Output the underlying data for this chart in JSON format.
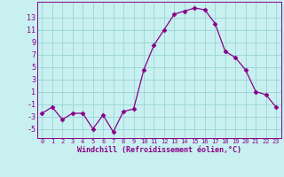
{
  "x": [
    0,
    1,
    2,
    3,
    4,
    5,
    6,
    7,
    8,
    9,
    10,
    11,
    12,
    13,
    14,
    15,
    16,
    17,
    18,
    19,
    20,
    21,
    22,
    23
  ],
  "y": [
    -2.5,
    -1.5,
    -3.5,
    -2.5,
    -2.5,
    -5.0,
    -2.8,
    -5.5,
    -2.2,
    -1.8,
    4.5,
    8.5,
    11.0,
    13.5,
    14.0,
    14.5,
    14.2,
    12.0,
    7.5,
    6.5,
    4.5,
    1.0,
    0.5,
    -1.5
  ],
  "line_color": "#880088",
  "marker": "D",
  "marker_size": 2.5,
  "bg_color": "#c8f0f0",
  "grid_color": "#a0d8d8",
  "xlabel": "Windchill (Refroidissement éolien,°C)",
  "yticks": [
    -5,
    -3,
    -1,
    1,
    3,
    5,
    7,
    9,
    11,
    13
  ],
  "ylim": [
    -6.5,
    15.5
  ],
  "xlim": [
    -0.5,
    23.5
  ],
  "axis_color": "#880088",
  "label_fontsize": 6.0,
  "tick_fontsize_x": 5.0,
  "tick_fontsize_y": 6.0
}
